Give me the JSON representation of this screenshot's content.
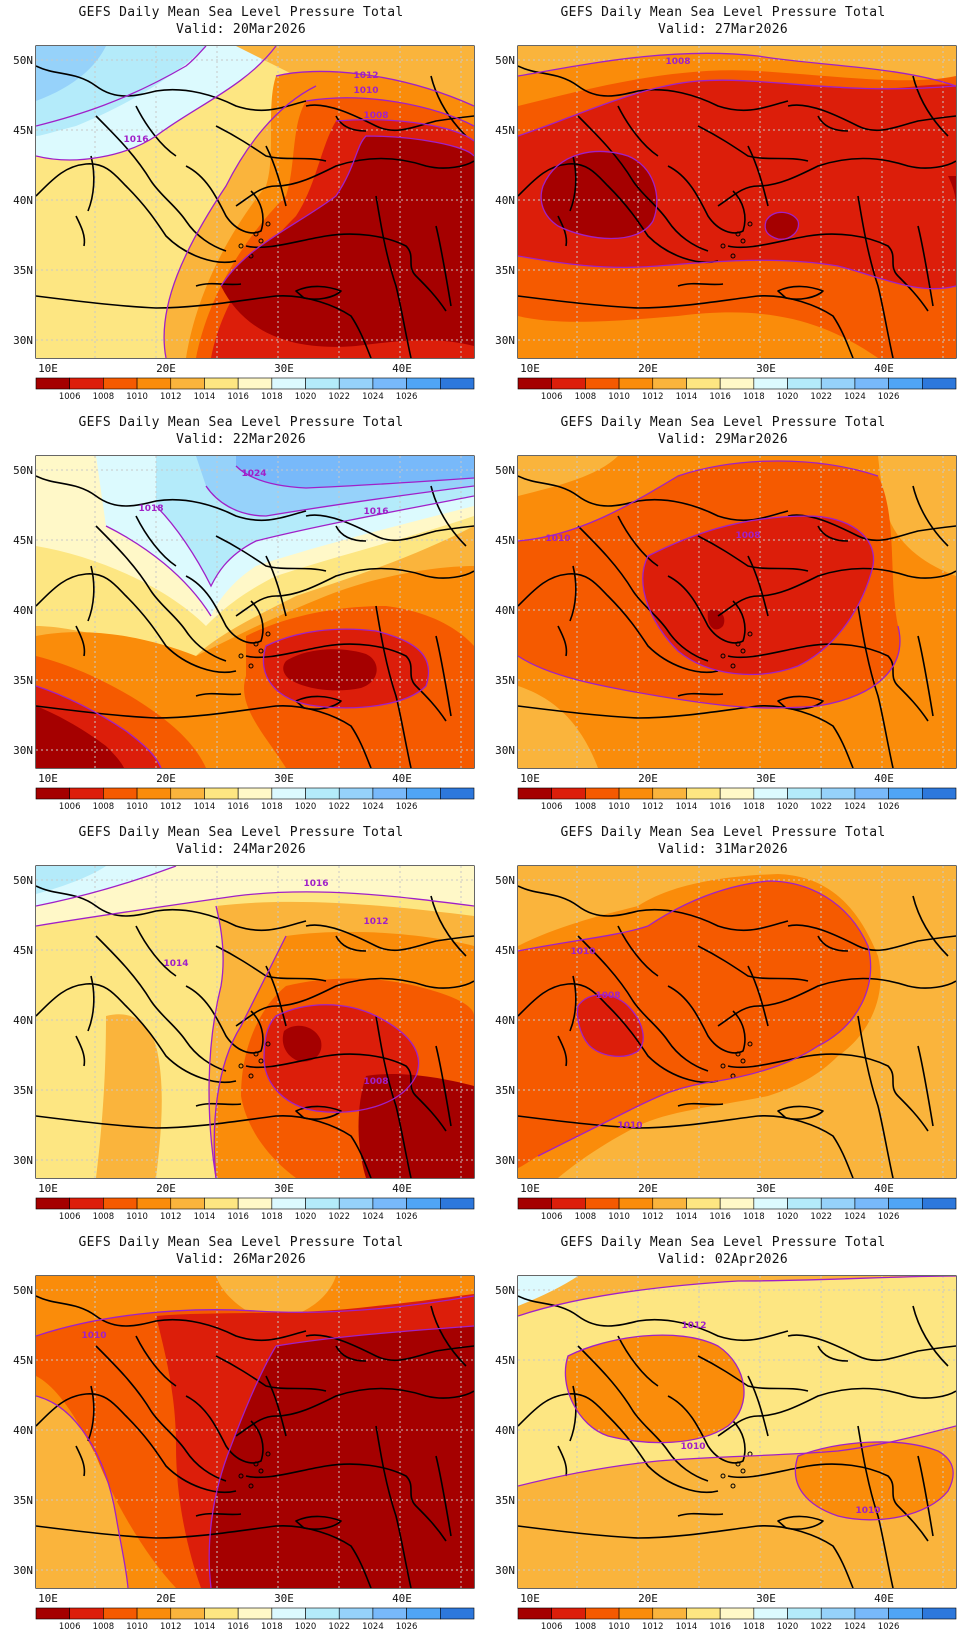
{
  "title": "GEFS Daily Mean Sea Level Pressure Total",
  "valid_prefix": "Valid:",
  "lat_labels": [
    "50N",
    "45N",
    "40N",
    "35N",
    "30N"
  ],
  "lon_labels": [
    "10E",
    "20E",
    "30E",
    "40E"
  ],
  "colorbar": {
    "labels": [
      "1006",
      "1008",
      "1010",
      "1012",
      "1014",
      "1016",
      "1018",
      "1020",
      "1022",
      "1024",
      "1026"
    ],
    "colors": [
      "#a50000",
      "#dc1e0a",
      "#f55a00",
      "#fa8c0a",
      "#fab43c",
      "#fde682",
      "#fff8c8",
      "#dcfafe",
      "#b4ebfa",
      "#96d2fa",
      "#78b9fa",
      "#50a5f5",
      "#2d78dc"
    ]
  },
  "contour_color": "#a020c8",
  "panels": [
    {
      "valid": "Valid: 20Mar2026",
      "contour_labels": [
        "1016",
        "1012",
        "1010",
        "1008"
      ]
    },
    {
      "valid": "Valid: 27Mar2026",
      "contour_labels": [
        "1008"
      ]
    },
    {
      "valid": "Valid: 22Mar2026",
      "contour_labels": [
        "1024",
        "1018",
        "1016"
      ]
    },
    {
      "valid": "Valid: 29Mar2026",
      "contour_labels": [
        "1010",
        "1008"
      ]
    },
    {
      "valid": "Valid: 24Mar2026",
      "contour_labels": [
        "1016",
        "1012",
        "1014",
        "1008"
      ]
    },
    {
      "valid": "Valid: 31Mar2026",
      "contour_labels": [
        "1010",
        "1008",
        "1010"
      ]
    },
    {
      "valid": "Valid: 26Mar2026",
      "contour_labels": [
        "1010"
      ]
    },
    {
      "valid": "Valid: 02Apr2026",
      "contour_labels": [
        "1012",
        "1010",
        "1010"
      ]
    }
  ]
}
